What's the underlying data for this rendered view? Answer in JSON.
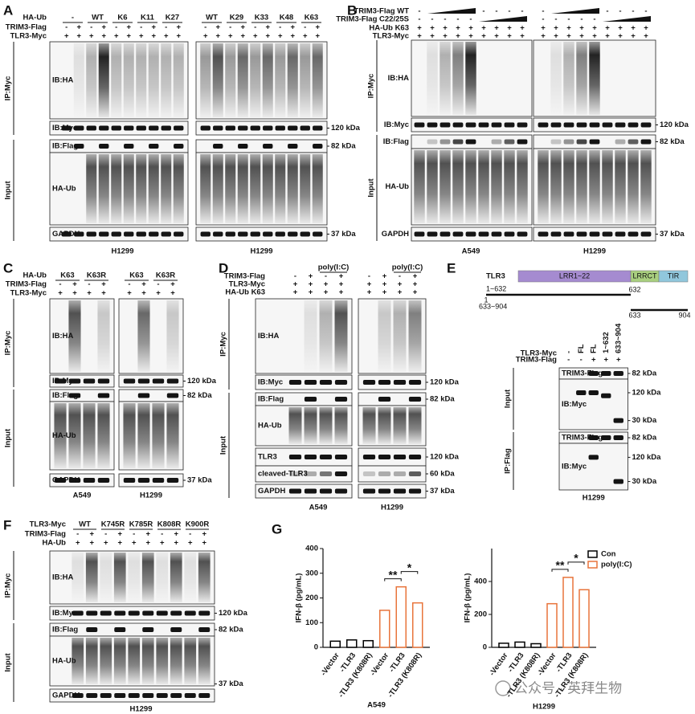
{
  "panels": {
    "A": {
      "letter": "A",
      "rows": [
        {
          "label": "HA-Ub",
          "halves": [
            [
              "-",
              "WT",
              "K6",
              "K11",
              "K27"
            ],
            [
              "WT",
              "K29",
              "K33",
              "K48",
              "K63"
            ]
          ]
        },
        {
          "label": "TRIM3-Flag",
          "halves": [
            [
              "-",
              "+",
              "-",
              "+",
              "-",
              "+",
              "-",
              "+",
              "-",
              "+"
            ],
            [
              "-",
              "+",
              "-",
              "+",
              "-",
              "+",
              "-",
              "+",
              "-",
              "+"
            ]
          ]
        },
        {
          "label": "TLR3-Myc",
          "halves": [
            [
              "+",
              "+",
              "+",
              "+",
              "+",
              "+",
              "+",
              "+",
              "+",
              "+"
            ],
            [
              "+",
              "+",
              "+",
              "+",
              "+",
              "+",
              "+",
              "+",
              "+",
              "+"
            ]
          ]
        }
      ],
      "blots": [
        {
          "label": "IB:HA",
          "kda": []
        },
        {
          "label": "IB:Myc",
          "kda": [
            "120 kDa"
          ]
        },
        {
          "label": "IB:Flag",
          "kda": [
            "82 kDa"
          ]
        },
        {
          "label": "HA-Ub",
          "kda": []
        },
        {
          "label": "GAPDH",
          "kda": [
            "37 kDa"
          ]
        }
      ],
      "sides": [
        "IP:Myc",
        "Input"
      ],
      "cells": [
        "H1299",
        "H1299"
      ]
    },
    "B": {
      "letter": "B",
      "rows": [
        {
          "label": "TRIM3-Flag WT",
          "halves": [
            [
              "-",
              null,
              null,
              null,
              null,
              "-",
              "-",
              "-",
              "-"
            ],
            [
              "-",
              null,
              null,
              null,
              null,
              "-",
              "-",
              "-",
              "-"
            ]
          ]
        },
        {
          "label": "TRIM3-Flag C22/25S",
          "halves": [
            [
              "-",
              "-",
              "-",
              "-",
              "-",
              null,
              null,
              null,
              null
            ],
            [
              "-",
              "-",
              "-",
              "-",
              "-",
              null,
              null,
              null,
              null
            ]
          ]
        },
        {
          "label": "HA-Ub K63",
          "halves": [
            [
              "+",
              "+",
              "+",
              "+",
              "+",
              "+",
              "+",
              "+",
              "+"
            ],
            [
              "+",
              "+",
              "+",
              "+",
              "+",
              "+",
              "+",
              "+",
              "+"
            ]
          ]
        },
        {
          "label": "TLR3-Myc",
          "halves": [
            [
              "+",
              "+",
              "+",
              "+",
              "+",
              "+",
              "+",
              "+",
              "+"
            ],
            [
              "+",
              "+",
              "+",
              "+",
              "+",
              "+",
              "+",
              "+",
              "+"
            ]
          ]
        }
      ],
      "blots": [
        {
          "label": "IB:HA",
          "kda": []
        },
        {
          "label": "IB:Myc",
          "kda": [
            "120 kDa"
          ]
        },
        {
          "label": "IB:Flag",
          "kda": [
            "82 kDa"
          ]
        },
        {
          "label": "HA-Ub",
          "kda": []
        },
        {
          "label": "GAPDH",
          "kda": [
            "37 kDa"
          ]
        }
      ],
      "sides": [
        "IP:Myc",
        "Input"
      ],
      "cells": [
        "A549",
        "H1299"
      ]
    },
    "C": {
      "letter": "C",
      "rows": [
        {
          "label": "HA-Ub",
          "halves": [
            [
              "K63",
              "K63R"
            ],
            [
              "K63",
              "K63R"
            ]
          ]
        },
        {
          "label": "TRIM3-Flag",
          "halves": [
            [
              "-",
              "+",
              "-",
              "+"
            ],
            [
              "-",
              "+",
              "-",
              "+"
            ]
          ]
        },
        {
          "label": "TLR3-Myc",
          "halves": [
            [
              "+",
              "+",
              "+",
              "+"
            ],
            [
              "+",
              "+",
              "+",
              "+"
            ]
          ]
        }
      ],
      "blots": [
        {
          "label": "IB:HA",
          "kda": []
        },
        {
          "label": "IB:Myc",
          "kda": [
            "120 kDa"
          ]
        },
        {
          "label": "IB:Flag",
          "kda": [
            "82 kDa"
          ]
        },
        {
          "label": "HA-Ub",
          "kda": []
        },
        {
          "label": "GAPDH",
          "kda": [
            "37 kDa"
          ]
        }
      ],
      "sides": [
        "IP:Myc",
        "Input"
      ],
      "cells": [
        "A549",
        "H1299"
      ]
    },
    "D": {
      "letter": "D",
      "top": [
        "poly(I:C)",
        "poly(I:C)"
      ],
      "rows": [
        {
          "label": "TRIM3-Flag",
          "halves": [
            [
              "-",
              "+",
              "-",
              "+"
            ],
            [
              "-",
              "+",
              "-",
              "+"
            ]
          ]
        },
        {
          "label": "TLR3-Myc",
          "halves": [
            [
              "+",
              "+",
              "+",
              "+"
            ],
            [
              "+",
              "+",
              "+",
              "+"
            ]
          ]
        },
        {
          "label": "HA-Ub K63",
          "halves": [
            [
              "+",
              "+",
              "+",
              "+"
            ],
            [
              "+",
              "+",
              "+",
              "+"
            ]
          ]
        }
      ],
      "blots": [
        {
          "label": "IB:HA",
          "kda": []
        },
        {
          "label": "IB:Myc",
          "kda": [
            "120 kDa"
          ]
        },
        {
          "label": "IB:Flag",
          "kda": [
            "82 kDa"
          ]
        },
        {
          "label": "HA-Ub",
          "kda": []
        },
        {
          "label": "TLR3",
          "kda": [
            "120 kDa"
          ]
        },
        {
          "label": "cleaved-TLR3",
          "kda": [
            "60 kDa"
          ]
        },
        {
          "label": "GAPDH",
          "kda": [
            "37 kDa"
          ]
        }
      ],
      "sides": [
        "IP:Myc",
        "Input"
      ],
      "cells": [
        "A549",
        "H1299"
      ]
    },
    "E": {
      "letter": "E",
      "domain": {
        "protein": "TLR3",
        "domains": [
          "LRR1~22",
          "LRRCT",
          "TIR"
        ],
        "constructs": [
          "1~632",
          "633~904"
        ],
        "positions": [
          "1",
          "632",
          "633",
          "904"
        ]
      },
      "rows": [
        {
          "label": "TLR3-Myc",
          "halves": [
            [
              "-",
              "FL",
              "FL",
              "1~632",
              "633~904"
            ]
          ]
        },
        {
          "label": "TRIM3-Flag",
          "halves": [
            [
              "-",
              "-",
              "+",
              "+",
              "+"
            ]
          ]
        }
      ],
      "blots": [
        {
          "label": "TRIM3-Flag",
          "kda": [
            "82 kDa"
          ]
        },
        {
          "label": "IB:Myc",
          "kda": [
            "120 kDa",
            "30 kDa"
          ]
        },
        {
          "label": "TRIM3-Flag",
          "kda": [
            "82 kDa"
          ]
        },
        {
          "label": "IB:Myc",
          "kda": [
            "120 kDa",
            "30 kDa"
          ]
        }
      ],
      "sides": [
        "Input",
        "IP:Flag"
      ],
      "cells": [
        "H1299"
      ]
    },
    "F": {
      "letter": "F",
      "rows": [
        {
          "label": "TLR3-Myc",
          "halves": [
            [
              "WT",
              "K745R",
              "K785R",
              "K808R",
              "K900R"
            ]
          ]
        },
        {
          "label": "TRIM3-Flag",
          "halves": [
            [
              "-",
              "+",
              "-",
              "+",
              "-",
              "+",
              "-",
              "+",
              "-",
              "+"
            ]
          ]
        },
        {
          "label": "HA-Ub",
          "halves": [
            [
              "+",
              "+",
              "+",
              "+",
              "+",
              "+",
              "+",
              "+",
              "+",
              "+"
            ]
          ]
        }
      ],
      "blots": [
        {
          "label": "IB:HA",
          "kda": []
        },
        {
          "label": "IB:Myc",
          "kda": [
            "120 kDa"
          ]
        },
        {
          "label": "IB:Flag",
          "kda": [
            "82 kDa"
          ]
        },
        {
          "label": "HA-Ub",
          "kda": []
        },
        {
          "label": "GAPDH",
          "kda": [
            "37 kDa"
          ]
        }
      ],
      "sides": [
        "IP:Myc",
        "Input"
      ],
      "cells": [
        "H1299"
      ]
    },
    "G": {
      "letter": "G"
    }
  },
  "chart_data": [
    {
      "type": "bar",
      "title": "A549",
      "ylabel": "IFN-β (pg/mL)",
      "categories": [
        "-Vector",
        "-TLR3",
        "-TLR3 (K808R)"
      ],
      "series": [
        {
          "name": "Con",
          "color": "#000000",
          "values": [
            25,
            30,
            27
          ]
        },
        {
          "name": "poly(I:C)",
          "color": "#e8743b",
          "values": [
            150,
            245,
            180
          ]
        }
      ],
      "ylim": [
        0,
        400
      ],
      "yticks": [
        0,
        100,
        200,
        300,
        400
      ],
      "annotations": [
        "**",
        "*"
      ]
    },
    {
      "type": "bar",
      "title": "H1299",
      "ylabel": "IFN-β (pg/mL)",
      "categories": [
        "-Vector",
        "-TLR3",
        "-TLR3 (K808R)"
      ],
      "series": [
        {
          "name": "Con",
          "color": "#000000",
          "values": [
            25,
            32,
            22
          ]
        },
        {
          "name": "poly(I:C)",
          "color": "#e8743b",
          "values": [
            265,
            425,
            350
          ]
        }
      ],
      "ylim": [
        0,
        600
      ],
      "yticks": [
        0,
        200,
        400
      ],
      "annotations": [
        "**",
        "*"
      ],
      "legend": "upper right"
    }
  ],
  "watermark": "公众号 · 英拜生物"
}
